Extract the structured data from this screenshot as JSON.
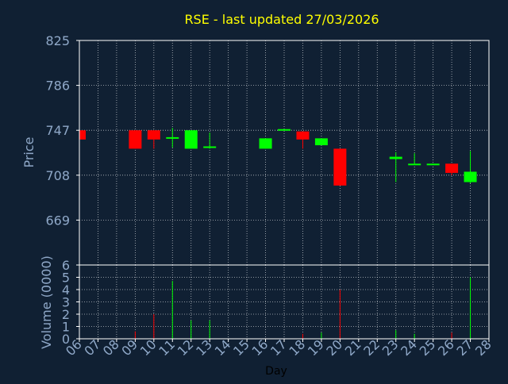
{
  "chart_data": {
    "type": "candlestick",
    "title": "RSE - last updated 27/03/2026",
    "colors": {
      "background": "#102033",
      "title": "#ffff00",
      "axis_text": "#8fa8c8",
      "up": "#00ff00",
      "down": "#ff0000",
      "grid": "#ffffff"
    },
    "price_panel": {
      "ylabel": "Price",
      "ylim": [
        630,
        825
      ],
      "yticks": [
        825,
        786,
        747,
        708,
        669
      ],
      "grid": true,
      "candles": [
        {
          "day": "06",
          "open": 747,
          "high": 747,
          "low": 739,
          "close": 739
        },
        {
          "day": "09",
          "open": 747,
          "high": 747,
          "low": 731,
          "close": 731
        },
        {
          "day": "10",
          "open": 747,
          "high": 747,
          "low": 731,
          "close": 739
        },
        {
          "day": "11",
          "open": 740,
          "high": 749,
          "low": 732,
          "close": 741
        },
        {
          "day": "12",
          "open": 731,
          "high": 747,
          "low": 731,
          "close": 747
        },
        {
          "day": "13",
          "open": 732,
          "high": 745,
          "low": 731,
          "close": 733
        },
        {
          "day": "16",
          "open": 731,
          "high": 740,
          "low": 731,
          "close": 740
        },
        {
          "day": "17",
          "open": 747,
          "high": 748,
          "low": 747,
          "close": 748
        },
        {
          "day": "18",
          "open": 746,
          "high": 746,
          "low": 731,
          "close": 739
        },
        {
          "day": "19",
          "open": 734,
          "high": 740,
          "low": 734,
          "close": 740
        },
        {
          "day": "20",
          "open": 731,
          "high": 731,
          "low": 699,
          "close": 699
        },
        {
          "day": "23",
          "open": 722,
          "high": 728,
          "low": 702,
          "close": 724
        },
        {
          "day": "24",
          "open": 717,
          "high": 727,
          "low": 717,
          "close": 718
        },
        {
          "day": "25",
          "open": 717,
          "high": 718,
          "low": 717,
          "close": 718
        },
        {
          "day": "26",
          "open": 718,
          "high": 718,
          "low": 708,
          "close": 710
        },
        {
          "day": "27",
          "open": 702,
          "high": 729,
          "low": 701,
          "close": 711
        }
      ]
    },
    "volume_panel": {
      "ylabel": "Volume (0000)",
      "ylim": [
        0,
        6
      ],
      "yticks": [
        6,
        5,
        4,
        3,
        2,
        1,
        0
      ],
      "grid": true,
      "volumes": [
        {
          "day": "09",
          "value": 0.6,
          "direction": "down"
        },
        {
          "day": "10",
          "value": 2.0,
          "direction": "down"
        },
        {
          "day": "11",
          "value": 4.7,
          "direction": "up"
        },
        {
          "day": "12",
          "value": 1.5,
          "direction": "up"
        },
        {
          "day": "13",
          "value": 1.5,
          "direction": "up"
        },
        {
          "day": "18",
          "value": 0.4,
          "direction": "down"
        },
        {
          "day": "19",
          "value": 0.5,
          "direction": "up"
        },
        {
          "day": "20",
          "value": 4.0,
          "direction": "down"
        },
        {
          "day": "23",
          "value": 0.7,
          "direction": "up"
        },
        {
          "day": "24",
          "value": 0.4,
          "direction": "up"
        },
        {
          "day": "26",
          "value": 0.5,
          "direction": "down"
        },
        {
          "day": "27",
          "value": 5.0,
          "direction": "up"
        }
      ]
    },
    "xlabel": "Day",
    "days": [
      "06",
      "07",
      "08",
      "09",
      "10",
      "11",
      "12",
      "13",
      "14",
      "15",
      "16",
      "17",
      "18",
      "19",
      "20",
      "21",
      "22",
      "23",
      "24",
      "25",
      "26",
      "27",
      "28"
    ]
  }
}
